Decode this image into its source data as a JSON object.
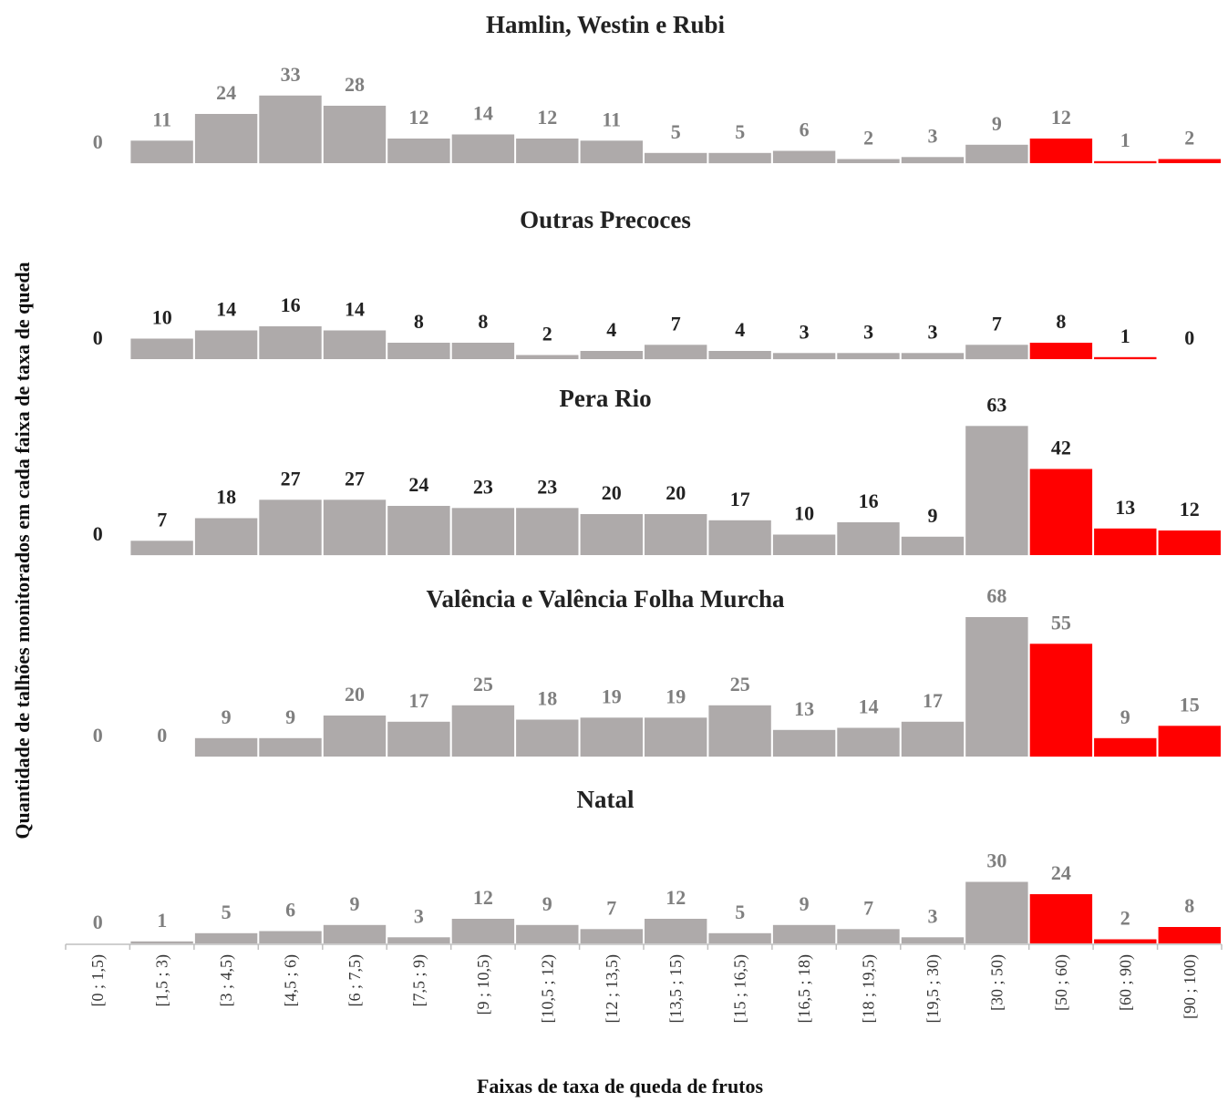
{
  "chart_data": {
    "type": "bar",
    "ylabel": "Quantidade  de talhões monitorados  em cada faixa de taxa de queda",
    "xlabel": "Faixas de taxa de queda de frutos",
    "categories": [
      "[0 ; 1,5)",
      "[1,5 ; 3)",
      "[3 ; 4,5)",
      "[4,5 ; 6)",
      "[6 ; 7,5)",
      "[7,5 ; 9)",
      "[9 ; 10,5)",
      "[10,5 ; 12)",
      "[12 ; 13,5)",
      "[13,5 ; 15)",
      "[15 ; 16,5)",
      "[16,5 ; 18)",
      "[18 ; 19,5)",
      "[19,5 ; 30)",
      "[30 ; 50)",
      "[50 ; 60)",
      "[60 ; 90)",
      "[90 ; 100)"
    ],
    "highlight_from_index": 15,
    "colors": {
      "normal": "#aeaaaa",
      "highlight": "#ff0000"
    },
    "series": [
      {
        "name": "Hamlin, Westin e Rubi",
        "values": [
          0,
          11,
          24,
          33,
          28,
          12,
          14,
          12,
          11,
          5,
          5,
          6,
          2,
          3,
          9,
          12,
          1,
          2
        ]
      },
      {
        "name": "Outras Precoces",
        "values": [
          0,
          10,
          14,
          16,
          14,
          8,
          8,
          2,
          4,
          7,
          4,
          3,
          3,
          3,
          7,
          8,
          1,
          0
        ]
      },
      {
        "name": "Pera Rio",
        "values": [
          0,
          7,
          18,
          27,
          27,
          24,
          23,
          23,
          20,
          20,
          17,
          10,
          16,
          9,
          63,
          42,
          13,
          12
        ]
      },
      {
        "name": "Valência e Valência Folha Murcha",
        "values": [
          0,
          0,
          9,
          9,
          20,
          17,
          25,
          18,
          19,
          19,
          25,
          13,
          14,
          17,
          68,
          55,
          9,
          15
        ]
      },
      {
        "name": "Natal",
        "values": [
          0,
          1,
          5,
          6,
          9,
          3,
          12,
          9,
          7,
          12,
          5,
          9,
          7,
          3,
          30,
          24,
          2,
          8
        ]
      }
    ]
  }
}
